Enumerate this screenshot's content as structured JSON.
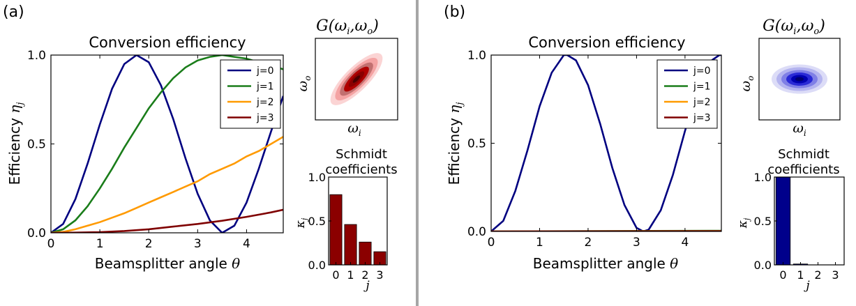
{
  "panels": [
    {
      "letter": "(a)",
      "main_title": "Conversion efficiency",
      "ylabel_text": "Efficiency ",
      "ylabel_sym": "η",
      "ylabel_sub": "j",
      "xlabel_text": "Beamsplitter angle ",
      "xlabel_sym": "θ",
      "jsa_title": "G(ω",
      "jsa_title_full": [
        "G(ω",
        "i",
        ",ω",
        "o",
        ")"
      ],
      "jsa_xlabel": [
        "ω",
        "i"
      ],
      "jsa_ylabel": [
        "ω",
        "o"
      ],
      "schmidt_title": [
        "Schmidt",
        "coefficients"
      ],
      "kappa_label": [
        "κ",
        "j"
      ],
      "j_label": "j",
      "jsa_color": "red",
      "legend_pos": "top-right"
    },
    {
      "letter": "(b)",
      "main_title": "Conversion efficiency",
      "ylabel_text": "Efficiency ",
      "ylabel_sym": "η",
      "ylabel_sub": "j",
      "xlabel_text": "Beamsplitter angle ",
      "xlabel_sym": "θ",
      "jsa_title_full": [
        "G(ω",
        "i",
        ",ω",
        "o",
        ")"
      ],
      "jsa_xlabel": [
        "ω",
        "i"
      ],
      "jsa_ylabel": [
        "ω",
        "o"
      ],
      "schmidt_title": [
        "Schmidt",
        "coefficients"
      ],
      "kappa_label": [
        "κ",
        "j"
      ],
      "j_label": "j",
      "jsa_color": "blue",
      "legend_pos": "top-right"
    }
  ],
  "colors": {
    "j0": "#000080",
    "j1": "#1a7d1a",
    "j2": "#ff9a00",
    "j3": "#7f0000",
    "bar_a": "#8b0000",
    "bar_b": "#00008b",
    "divider": "#a6a6a6"
  },
  "chart_data": [
    {
      "type": "line",
      "panel": "(a)",
      "title": "Conversion efficiency",
      "xlabel": "Beamsplitter angle θ",
      "ylabel": "Efficiency η_j",
      "xlim": [
        0,
        4.75
      ],
      "ylim": [
        0,
        1.0
      ],
      "xticks": [
        "0",
        "1",
        "2",
        "3",
        "4"
      ],
      "yticks": [
        "0.0",
        "0.5",
        "1.0"
      ],
      "legend": [
        "j=0",
        "j=1",
        "j=2",
        "j=3"
      ],
      "series": [
        {
          "name": "j=0",
          "x": [
            0,
            0.25,
            0.5,
            0.75,
            1.0,
            1.25,
            1.5,
            1.75,
            2.0,
            2.25,
            2.5,
            2.75,
            3.0,
            3.25,
            3.5,
            3.75,
            4.0,
            4.25,
            4.5,
            4.75
          ],
          "y": [
            0,
            0.05,
            0.19,
            0.39,
            0.61,
            0.81,
            0.95,
            1.0,
            0.96,
            0.83,
            0.64,
            0.42,
            0.22,
            0.07,
            0.0,
            0.04,
            0.17,
            0.36,
            0.57,
            0.77
          ]
        },
        {
          "name": "j=1",
          "x": [
            0,
            0.25,
            0.5,
            0.75,
            1.0,
            1.25,
            1.5,
            1.75,
            2.0,
            2.25,
            2.5,
            2.75,
            3.0,
            3.25,
            3.5,
            3.75,
            4.0,
            4.25,
            4.5,
            4.75
          ],
          "y": [
            0,
            0.02,
            0.07,
            0.15,
            0.25,
            0.36,
            0.48,
            0.59,
            0.7,
            0.79,
            0.87,
            0.93,
            0.97,
            0.99,
            1.0,
            0.99,
            0.98,
            0.96,
            0.94,
            0.92
          ]
        },
        {
          "name": "j=2",
          "x": [
            0,
            0.25,
            0.5,
            0.75,
            1.0,
            1.25,
            1.5,
            1.75,
            2.0,
            2.25,
            2.5,
            2.75,
            3.0,
            3.25,
            3.5,
            3.75,
            4.0,
            4.25,
            4.5,
            4.75
          ],
          "y": [
            0,
            0.005,
            0.02,
            0.04,
            0.06,
            0.085,
            0.11,
            0.14,
            0.17,
            0.2,
            0.23,
            0.26,
            0.29,
            0.33,
            0.36,
            0.39,
            0.43,
            0.46,
            0.5,
            0.54
          ]
        },
        {
          "name": "j=3",
          "x": [
            0,
            0.5,
            1.0,
            1.5,
            2.0,
            2.5,
            3.0,
            3.5,
            4.0,
            4.5,
            4.75
          ],
          "y": [
            0,
            0.001,
            0.004,
            0.01,
            0.02,
            0.035,
            0.05,
            0.068,
            0.09,
            0.115,
            0.13
          ]
        }
      ]
    },
    {
      "type": "bar",
      "panel": "(a)",
      "title": "Schmidt coefficients",
      "xlabel": "j",
      "ylabel": "κ_j",
      "categories": [
        "0",
        "1",
        "2",
        "3"
      ],
      "values": [
        0.8,
        0.46,
        0.26,
        0.15
      ],
      "ylim": [
        0,
        1.0
      ],
      "yticks": [
        "0.0",
        "0.5",
        "1.0"
      ]
    },
    {
      "type": "line",
      "panel": "(b)",
      "title": "Conversion efficiency",
      "xlabel": "Beamsplitter angle θ",
      "ylabel": "Efficiency η_j",
      "xlim": [
        0,
        4.75
      ],
      "ylim": [
        0,
        1.0
      ],
      "xticks": [
        "0",
        "1",
        "2",
        "3",
        "4"
      ],
      "yticks": [
        "0.0",
        "0.5",
        "1.0"
      ],
      "legend": [
        "j=0",
        "j=1",
        "j=2",
        "j=3"
      ],
      "series": [
        {
          "name": "j=0",
          "x": [
            0,
            0.25,
            0.5,
            0.75,
            1.0,
            1.25,
            1.5,
            1.57,
            1.75,
            2.0,
            2.25,
            2.5,
            2.75,
            3.0,
            3.14,
            3.25,
            3.5,
            3.75,
            4.0,
            4.25,
            4.5,
            4.71,
            4.75
          ],
          "y": [
            0,
            0.06,
            0.23,
            0.46,
            0.71,
            0.9,
            1.0,
            1.0,
            0.97,
            0.83,
            0.61,
            0.36,
            0.15,
            0.02,
            0.0,
            0.01,
            0.12,
            0.32,
            0.57,
            0.8,
            0.96,
            1.0,
            1.0
          ]
        },
        {
          "name": "j=1",
          "x": [
            0,
            4.75
          ],
          "y": [
            0,
            0.004
          ]
        },
        {
          "name": "j=2",
          "x": [
            0,
            4.75
          ],
          "y": [
            0,
            0.002
          ]
        },
        {
          "name": "j=3",
          "x": [
            0,
            4.75
          ],
          "y": [
            0,
            0.001
          ]
        }
      ]
    },
    {
      "type": "bar",
      "panel": "(b)",
      "title": "Schmidt coefficients",
      "xlabel": "j",
      "ylabel": "κ_j",
      "categories": [
        "0",
        "1",
        "2",
        "3"
      ],
      "values": [
        1.0,
        0.01,
        0.0,
        0.0
      ],
      "ylim": [
        0,
        1.0
      ],
      "yticks": [
        "0.0",
        "0.5",
        "1.0"
      ]
    }
  ]
}
